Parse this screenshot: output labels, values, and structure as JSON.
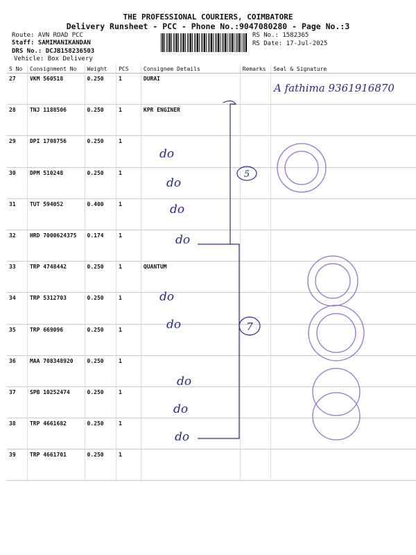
{
  "header": {
    "company": "THE PROFESSIONAL COURIERS, COIMBATORE",
    "subtitle": "Delivery Runsheet - PCC - Phone No.:9047080280 - Page No.:3",
    "route": "Route: AVN ROAD PCC",
    "staff": "Staff: SAMIMANIKANDAN",
    "drs": "DRS No.: DCJB158236503",
    "vehicle": "Vehicle: Box Delivery",
    "rs_no": "RS No.: 1582365",
    "rs_date": "RS Date: 17-Jul-2025"
  },
  "columns": [
    "S No",
    "Consignment No",
    "Weight",
    "PCS",
    "Consignee Details",
    "Remarks",
    "Seal & Signature"
  ],
  "rows": [
    {
      "sno": "27",
      "cn": "VKM 560518",
      "wt": "0.250",
      "pcs": "1",
      "consignee": "DURAI"
    },
    {
      "sno": "28",
      "cn": "TNJ 1188506",
      "wt": "0.250",
      "pcs": "1",
      "consignee": "KPR ENGINER"
    },
    {
      "sno": "29",
      "cn": "DPI 1708756",
      "wt": "0.250",
      "pcs": "1",
      "consignee": ""
    },
    {
      "sno": "30",
      "cn": "DPM 510248",
      "wt": "0.250",
      "pcs": "1",
      "consignee": ""
    },
    {
      "sno": "31",
      "cn": "TUT 594052",
      "wt": "0.400",
      "pcs": "1",
      "consignee": ""
    },
    {
      "sno": "32",
      "cn": "HRD 7000624375",
      "wt": "0.174",
      "pcs": "1",
      "consignee": ""
    },
    {
      "sno": "33",
      "cn": "TRP 4748442",
      "wt": "0.250",
      "pcs": "1",
      "consignee": "QUANTUM"
    },
    {
      "sno": "34",
      "cn": "TRP 5312703",
      "wt": "0.250",
      "pcs": "1",
      "consignee": ""
    },
    {
      "sno": "35",
      "cn": "TRP 669096",
      "wt": "0.250",
      "pcs": "1",
      "consignee": ""
    },
    {
      "sno": "36",
      "cn": "MAA 708348920",
      "wt": "0.250",
      "pcs": "1",
      "consignee": ""
    },
    {
      "sno": "37",
      "cn": "SPB 10252474",
      "wt": "0.250",
      "pcs": "1",
      "consignee": ""
    },
    {
      "sno": "38",
      "cn": "TRP 4661682",
      "wt": "0.250",
      "pcs": "1",
      "consignee": ""
    },
    {
      "sno": "39",
      "cn": "TRP 4661701",
      "wt": "0.250",
      "pcs": "1",
      "consignee": ""
    }
  ],
  "handwriting": {
    "receiver": "A fathima 9361916870",
    "ditto": "do",
    "group1_count": "5",
    "group2_count": "7"
  },
  "colors": {
    "ink": "#2a2a8a",
    "stamp": "#7b4fc9"
  }
}
